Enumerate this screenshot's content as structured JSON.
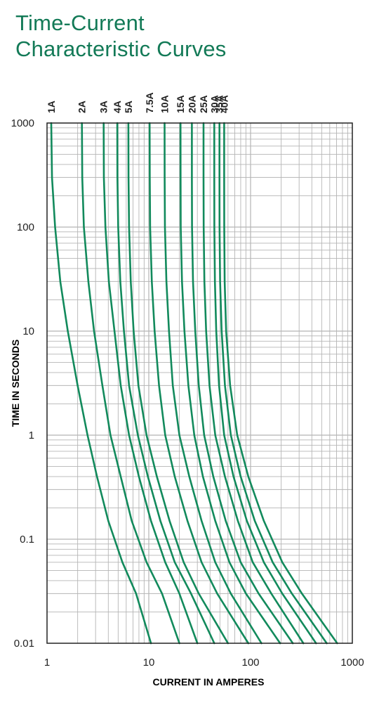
{
  "title_line1": "Time-Current",
  "title_line2": "Characteristic Curves",
  "colors": {
    "title": "#137a57",
    "curve": "#128a5c",
    "grid": "#b5b5b5",
    "axis": "#222222"
  },
  "chart_data": {
    "type": "line",
    "title": "Time-Current Characteristic Curves",
    "xlabel": "CURRENT IN AMPERES",
    "ylabel": "TIME IN SECONDS",
    "xscale": "log",
    "yscale": "log",
    "xlim": [
      1,
      1000
    ],
    "ylim": [
      0.01,
      1000
    ],
    "xticks": [
      1,
      10,
      100,
      1000
    ],
    "xtick_labels": [
      "1",
      "10",
      "100",
      "1000"
    ],
    "yticks": [
      0.01,
      0.1,
      1,
      10,
      100,
      1000
    ],
    "ytick_labels": [
      "0.01",
      "0.1",
      "1",
      "10",
      "100",
      "1000"
    ],
    "grid": true,
    "legend": "curve labels above top edge",
    "series": [
      {
        "name": "1A",
        "points": [
          [
            1.1,
            1000
          ],
          [
            1.12,
            300
          ],
          [
            1.2,
            100
          ],
          [
            1.35,
            30
          ],
          [
            1.6,
            10
          ],
          [
            2.0,
            3
          ],
          [
            2.5,
            1
          ],
          [
            3.1,
            0.4
          ],
          [
            4.0,
            0.15
          ],
          [
            5.5,
            0.06
          ],
          [
            7.5,
            0.03
          ],
          [
            10.5,
            0.01
          ]
        ]
      },
      {
        "name": "2A",
        "points": [
          [
            2.2,
            1000
          ],
          [
            2.22,
            300
          ],
          [
            2.3,
            100
          ],
          [
            2.55,
            30
          ],
          [
            2.9,
            10
          ],
          [
            3.5,
            3
          ],
          [
            4.2,
            1
          ],
          [
            5.3,
            0.4
          ],
          [
            6.8,
            0.15
          ],
          [
            9.5,
            0.06
          ],
          [
            13.5,
            0.03
          ],
          [
            20,
            0.01
          ]
        ]
      },
      {
        "name": "3A",
        "points": [
          [
            3.6,
            1000
          ],
          [
            3.62,
            300
          ],
          [
            3.75,
            100
          ],
          [
            4.05,
            30
          ],
          [
            4.6,
            10
          ],
          [
            5.3,
            3
          ],
          [
            6.4,
            1
          ],
          [
            8.0,
            0.4
          ],
          [
            10.5,
            0.15
          ],
          [
            14.5,
            0.06
          ],
          [
            20,
            0.03
          ],
          [
            30,
            0.01
          ]
        ]
      },
      {
        "name": "4A",
        "points": [
          [
            4.9,
            1000
          ],
          [
            4.92,
            300
          ],
          [
            5.0,
            100
          ],
          [
            5.25,
            30
          ],
          [
            5.7,
            10
          ],
          [
            6.4,
            3
          ],
          [
            7.8,
            1
          ],
          [
            9.8,
            0.4
          ],
          [
            13,
            0.15
          ],
          [
            18,
            0.06
          ],
          [
            26,
            0.03
          ],
          [
            44,
            0.01
          ]
        ]
      },
      {
        "name": "5A",
        "points": [
          [
            6.3,
            1000
          ],
          [
            6.32,
            300
          ],
          [
            6.4,
            100
          ],
          [
            6.65,
            30
          ],
          [
            7.1,
            10
          ],
          [
            7.9,
            3
          ],
          [
            9.5,
            1
          ],
          [
            12,
            0.4
          ],
          [
            16,
            0.15
          ],
          [
            22,
            0.06
          ],
          [
            31,
            0.03
          ],
          [
            60,
            0.01
          ]
        ]
      },
      {
        "name": "7.5A",
        "points": [
          [
            10.2,
            1000
          ],
          [
            10.22,
            300
          ],
          [
            10.3,
            100
          ],
          [
            10.7,
            30
          ],
          [
            11.4,
            10
          ],
          [
            12.6,
            3
          ],
          [
            14.5,
            1
          ],
          [
            18,
            0.4
          ],
          [
            24,
            0.15
          ],
          [
            33,
            0.06
          ],
          [
            47,
            0.03
          ],
          [
            95,
            0.01
          ]
        ]
      },
      {
        "name": "10A",
        "points": [
          [
            14.3,
            1000
          ],
          [
            14.32,
            300
          ],
          [
            14.4,
            100
          ],
          [
            14.9,
            30
          ],
          [
            15.8,
            10
          ],
          [
            17.2,
            3
          ],
          [
            20,
            1
          ],
          [
            25,
            0.4
          ],
          [
            33,
            0.15
          ],
          [
            45,
            0.06
          ],
          [
            64,
            0.03
          ],
          [
            128,
            0.01
          ]
        ]
      },
      {
        "name": "15A",
        "points": [
          [
            20.5,
            1000
          ],
          [
            20.52,
            300
          ],
          [
            20.6,
            100
          ],
          [
            21.2,
            30
          ],
          [
            22.4,
            10
          ],
          [
            24.5,
            3
          ],
          [
            28,
            1
          ],
          [
            34,
            0.4
          ],
          [
            45,
            0.15
          ],
          [
            62,
            0.06
          ],
          [
            90,
            0.03
          ],
          [
            195,
            0.01
          ]
        ]
      },
      {
        "name": "20A",
        "points": [
          [
            26.5,
            1000
          ],
          [
            26.52,
            300
          ],
          [
            26.6,
            100
          ],
          [
            27.2,
            30
          ],
          [
            28.6,
            10
          ],
          [
            31,
            3
          ],
          [
            35,
            1
          ],
          [
            43,
            0.4
          ],
          [
            57,
            0.15
          ],
          [
            80,
            0.06
          ],
          [
            120,
            0.03
          ],
          [
            260,
            0.01
          ]
        ]
      },
      {
        "name": "25A",
        "points": [
          [
            34.5,
            1000
          ],
          [
            34.52,
            300
          ],
          [
            34.6,
            100
          ],
          [
            35.2,
            30
          ],
          [
            36.6,
            10
          ],
          [
            39.5,
            3
          ],
          [
            45,
            1
          ],
          [
            56,
            0.4
          ],
          [
            75,
            0.15
          ],
          [
            105,
            0.06
          ],
          [
            160,
            0.03
          ],
          [
            330,
            0.01
          ]
        ]
      },
      {
        "name": "30A",
        "points": [
          [
            44,
            1000
          ],
          [
            44.02,
            300
          ],
          [
            44.1,
            100
          ],
          [
            44.6,
            30
          ],
          [
            46,
            10
          ],
          [
            49,
            3
          ],
          [
            55,
            1
          ],
          [
            68,
            0.4
          ],
          [
            92,
            0.15
          ],
          [
            135,
            0.06
          ],
          [
            205,
            0.03
          ],
          [
            440,
            0.01
          ]
        ]
      },
      {
        "name": "35A",
        "points": [
          [
            49.5,
            1000
          ],
          [
            49.52,
            300
          ],
          [
            49.6,
            100
          ],
          [
            50.2,
            30
          ],
          [
            52,
            10
          ],
          [
            56,
            3
          ],
          [
            64,
            1
          ],
          [
            80,
            0.4
          ],
          [
            110,
            0.15
          ],
          [
            165,
            0.06
          ],
          [
            255,
            0.03
          ],
          [
            560,
            0.01
          ]
        ]
      },
      {
        "name": "40A",
        "points": [
          [
            55,
            1000
          ],
          [
            55.02,
            300
          ],
          [
            55.1,
            100
          ],
          [
            55.7,
            30
          ],
          [
            57.5,
            10
          ],
          [
            63,
            3
          ],
          [
            74,
            1
          ],
          [
            95,
            0.4
          ],
          [
            135,
            0.15
          ],
          [
            205,
            0.06
          ],
          [
            320,
            0.03
          ],
          [
            710,
            0.01
          ]
        ]
      }
    ]
  }
}
